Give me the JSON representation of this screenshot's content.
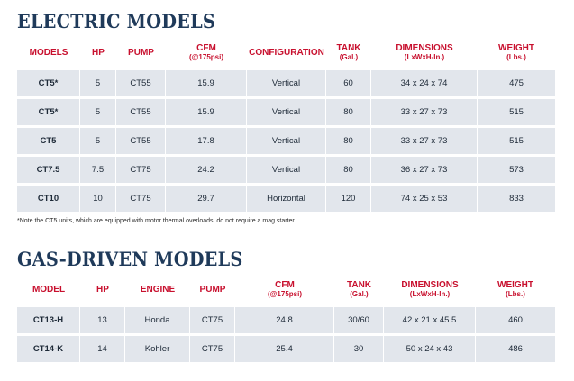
{
  "electric": {
    "title": "ELECTRIC MODELS",
    "headers": [
      {
        "label": "MODELS",
        "sub": ""
      },
      {
        "label": "HP",
        "sub": ""
      },
      {
        "label": "PUMP",
        "sub": ""
      },
      {
        "label": "CFM",
        "sub": "(@175psi)"
      },
      {
        "label": "CONFIGURATION",
        "sub": ""
      },
      {
        "label": "TANK",
        "sub": "(Gal.)"
      },
      {
        "label": "DIMENSIONS",
        "sub": "(LxWxH-In.)"
      },
      {
        "label": "WEIGHT",
        "sub": "(Lbs.)"
      }
    ],
    "rows": [
      [
        "CT5*",
        "5",
        "CT55",
        "15.9",
        "Vertical",
        "60",
        "34 x 24 x 74",
        "475"
      ],
      [
        "CT5*",
        "5",
        "CT55",
        "15.9",
        "Vertical",
        "80",
        "33 x 27 x 73",
        "515"
      ],
      [
        "CT5",
        "5",
        "CT55",
        "17.8",
        "Vertical",
        "80",
        "33 x 27 x 73",
        "515"
      ],
      [
        "CT7.5",
        "7.5",
        "CT75",
        "24.2",
        "Vertical",
        "80",
        "36 x 27 x 73",
        "573"
      ],
      [
        "CT10",
        "10",
        "CT75",
        "29.7",
        "Horizontal",
        "120",
        "74 x 25 x 53",
        "833"
      ]
    ],
    "note": "*Note the CT5 units, which are equipped with motor thermal overloads, do not require a mag starter"
  },
  "gas": {
    "title": "GAS-DRIVEN MODELS",
    "headers": [
      {
        "label": "MODEL",
        "sub": ""
      },
      {
        "label": "HP",
        "sub": ""
      },
      {
        "label": "ENGINE",
        "sub": ""
      },
      {
        "label": "PUMP",
        "sub": ""
      },
      {
        "label": "CFM",
        "sub": "(@175psi)"
      },
      {
        "label": "TANK",
        "sub": "(Gal.)"
      },
      {
        "label": "DIMENSIONS",
        "sub": "(LxWxH-In.)"
      },
      {
        "label": "WEIGHT",
        "sub": "(Lbs.)"
      }
    ],
    "rows": [
      [
        "CT13-H",
        "13",
        "Honda",
        "CT75",
        "24.8",
        "30/60",
        "42 x 21 x 45.5",
        "460"
      ],
      [
        "CT14-K",
        "14",
        "Kohler",
        "CT75",
        "25.4",
        "30",
        "50 x 24 x 43",
        "486"
      ]
    ]
  },
  "colors": {
    "title": "#1f3a5a",
    "header_text": "#c8102e",
    "row_fill": "#e2e6ec",
    "cell_text": "#1e2a38"
  }
}
